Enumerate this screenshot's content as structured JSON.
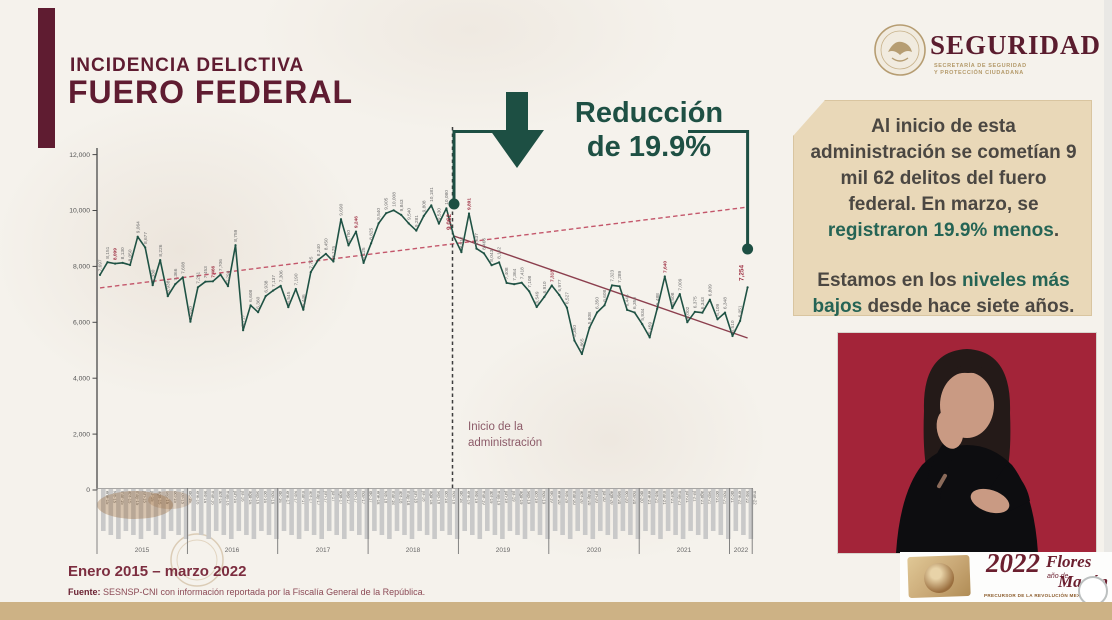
{
  "slide": {
    "title_line1": "INCIDENCIA DELICTIVA",
    "title_line2": "FUERO FEDERAL",
    "date_range": "Enero 2015 – marzo 2022",
    "source_label": "Fuente:",
    "source_text": " SESNSP-CNI con información reportada por la Fiscalía General de la República."
  },
  "header_logo": {
    "name": "SEGURIDAD",
    "subtitle_line1": "SECRETARÍA DE SEGURIDAD",
    "subtitle_line2": "Y PROTECCIÓN CIUDADANA"
  },
  "annotation": {
    "line1": "Reducción",
    "line2": "de 19.9%",
    "arrow_icon": "down-arrow",
    "color": "#1e5044"
  },
  "admin_marker": {
    "label_line1": "Inicio de la",
    "label_line2": "administración",
    "start_value_label": "9,062",
    "end_value_label": "7,254"
  },
  "info_card": {
    "paragraphs": [
      [
        {
          "t": "Al inicio de esta administración se cometían 9 mil 62 delitos del fuero federal. En marzo, se ",
          "b": false
        },
        {
          "t": "registraron 19.9% menos",
          "b": true
        },
        {
          "t": ".",
          "b": false
        }
      ],
      [
        {
          "t": "Estamos en los ",
          "b": false
        },
        {
          "t": "niveles más bajos",
          "b": true
        },
        {
          "t": " desde hace siete años.",
          "b": false
        }
      ]
    ],
    "bg_color": "#e9d8b8",
    "highlight_color": "#256455"
  },
  "footer_logo": {
    "year": "2022",
    "name_line1": "Flores",
    "name_line2": "Magón",
    "small_text": "año de",
    "caption": "PRECURSOR DE LA REVOLUCIÓN MEXICANA"
  },
  "chart_data": {
    "type": "line",
    "title": "Incidencia delictiva del fuero federal, enero 2015 – marzo 2022",
    "line_color": "#1f5244",
    "ylim": [
      0,
      12000
    ],
    "yticks": [
      0,
      2000,
      4000,
      6000,
      8000,
      10000,
      12000
    ],
    "ytick_labels": [
      "0",
      "2,000",
      "4,000",
      "6,000",
      "8,000",
      "10,000",
      "12,000"
    ],
    "year_labels": [
      "2015",
      "2016",
      "2017",
      "2018",
      "2019",
      "2020",
      "2021",
      "2022"
    ],
    "x_months": [
      "ene-15",
      "feb-15",
      "mar-15",
      "abr-15",
      "may-15",
      "jun-15",
      "jul-15",
      "ago-15",
      "sep-15",
      "oct-15",
      "nov-15",
      "dic-15",
      "ene-16",
      "feb-16",
      "mar-16",
      "abr-16",
      "may-16",
      "jun-16",
      "jul-16",
      "ago-16",
      "sep-16",
      "oct-16",
      "nov-16",
      "dic-16",
      "ene-17",
      "feb-17",
      "mar-17",
      "abr-17",
      "may-17",
      "jun-17",
      "jul-17",
      "ago-17",
      "sep-17",
      "oct-17",
      "nov-17",
      "dic-17",
      "ene-18",
      "feb-18",
      "mar-18",
      "abr-18",
      "may-18",
      "jun-18",
      "jul-18",
      "ago-18",
      "sep-18",
      "oct-18",
      "nov-18",
      "dic-18",
      "ene-19",
      "feb-19",
      "mar-19",
      "abr-19",
      "may-19",
      "jun-19",
      "jul-19",
      "ago-19",
      "sep-19",
      "oct-19",
      "nov-19",
      "dic-19",
      "ene-20",
      "feb-20",
      "mar-20",
      "abr-20",
      "may-20",
      "jun-20",
      "jul-20",
      "ago-20",
      "sep-20",
      "oct-20",
      "nov-20",
      "dic-20",
      "ene-21",
      "feb-21",
      "mar-21",
      "abr-21",
      "may-21",
      "jun-21",
      "jul-21",
      "ago-21",
      "sep-21",
      "oct-21",
      "nov-21",
      "dic-21",
      "ene-22",
      "feb-22",
      "mar-22"
    ],
    "values": [
      7697,
      8151,
      8099,
      8130,
      8050,
      9064,
      8677,
      7330,
      8226,
      6938,
      7366,
      7608,
      6020,
      7251,
      7453,
      7466,
      7706,
      7294,
      8759,
      5717,
      6608,
      6360,
      6938,
      7137,
      7306,
      6545,
      7190,
      6446,
      7795,
      8240,
      8450,
      8175,
      9690,
      8750,
      9246,
      8125,
      8825,
      9540,
      9905,
      10008,
      9843,
      9540,
      9281,
      9808,
      10181,
      9530,
      10080,
      9062,
      8512,
      9891,
      8637,
      8466,
      8043,
      8142,
      7408,
      7364,
      7418,
      7108,
      6549,
      6910,
      7318,
      6977,
      6527,
      5350,
      4865,
      5808,
      6350,
      6608,
      7323,
      7289,
      6445,
      6350,
      5934,
      5459,
      6488,
      7640,
      6508,
      7009,
      6002,
      6375,
      6343,
      6809,
      6109,
      6348,
      5510,
      6051,
      7254
    ],
    "red_label_indices": [
      2,
      15,
      34,
      47,
      49,
      60,
      75,
      86
    ],
    "marked_points": [
      {
        "index": 47,
        "label": "9,062",
        "note": "inicio de la administración"
      },
      {
        "index": 86,
        "label": "7,254",
        "note": "marzo 2022"
      }
    ],
    "admin_line_month": "dic-18",
    "trend_dashed_ascending": {
      "from_value": 7230,
      "to_value": 10120
    },
    "trend_solid_descending": {
      "from_index": 47,
      "from_value": 9086,
      "to_index": 86,
      "to_value": 5440
    },
    "grid": false,
    "legend": false
  }
}
